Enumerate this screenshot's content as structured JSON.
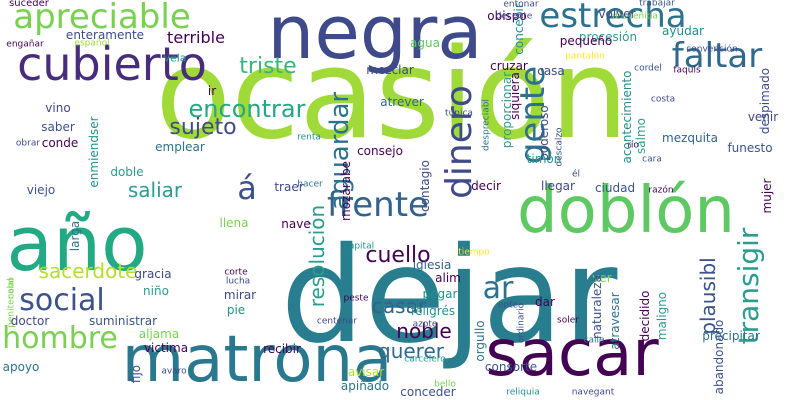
{
  "palette": {
    "dark_purple": "#440154",
    "indigo": "#3b528b",
    "teal": "#21918c",
    "sea_green": "#2a9d8f",
    "green": "#5ec962",
    "lime": "#a0da39",
    "yellow": "#fde725",
    "light_green": "#7ad151"
  },
  "words": [
    {
      "text": "ocasión",
      "color": "#a0da39",
      "v": false
    },
    {
      "text": "dejar",
      "color": "#287d8e",
      "v": false
    },
    {
      "text": "negra",
      "color": "#3e4a89",
      "v": false
    },
    {
      "text": "año",
      "color": "#23a983",
      "v": false
    },
    {
      "text": "doblón",
      "color": "#5ec962",
      "v": false
    },
    {
      "text": "matrona",
      "color": "#2a788e",
      "v": false
    },
    {
      "text": "sacar",
      "color": "#440154",
      "v": false
    },
    {
      "text": "cubierto",
      "color": "#472d7b",
      "v": false
    },
    {
      "text": "apreciable",
      "color": "#7ad151",
      "v": false
    },
    {
      "text": "estrecha",
      "color": "#2c728e",
      "v": false
    },
    {
      "text": "faltar",
      "color": "#31688e",
      "v": false
    },
    {
      "text": "frente",
      "color": "#33638d",
      "v": false
    },
    {
      "text": "social",
      "color": "#3b528b",
      "v": false
    },
    {
      "text": "hombre",
      "color": "#7ad151",
      "v": false
    },
    {
      "text": "transigir",
      "color": "#2a9d8f",
      "v": true
    },
    {
      "text": "dinero",
      "color": "#3e4a89",
      "v": true
    },
    {
      "text": "gente",
      "color": "#2e6f8e",
      "v": true
    },
    {
      "text": "ar",
      "color": "#2c728e",
      "v": false
    },
    {
      "text": "á",
      "color": "#3b528b",
      "v": false
    },
    {
      "text": "encontrar",
      "color": "#22a884",
      "v": false
    },
    {
      "text": "sujeto",
      "color": "#3e4a89",
      "v": false
    },
    {
      "text": "triste",
      "color": "#35b779",
      "v": false
    },
    {
      "text": "saliar",
      "color": "#2a9d8f",
      "v": false
    },
    {
      "text": "aguardar",
      "color": "#2c728e",
      "v": true
    },
    {
      "text": "cuello",
      "color": "#440154",
      "v": false
    },
    {
      "text": "sacerdote",
      "color": "#b5de2b",
      "v": false
    },
    {
      "text": "resolución",
      "color": "#2a9d8f",
      "v": true
    },
    {
      "text": "casar",
      "color": "#33638d",
      "v": false
    },
    {
      "text": "noble",
      "color": "#440154",
      "v": false
    },
    {
      "text": "querer",
      "color": "#31688e",
      "v": false
    },
    {
      "text": "plausibl",
      "color": "#3b528b",
      "v": true
    },
    {
      "text": "terrible",
      "color": "#440154",
      "v": false
    },
    {
      "text": "enteramente",
      "color": "#3e4a89",
      "v": false
    },
    {
      "text": "suceder",
      "color": "#440154",
      "v": false
    },
    {
      "text": "engañar",
      "color": "#440154",
      "v": false
    },
    {
      "text": "español",
      "color": "#a0da39",
      "v": false
    },
    {
      "text": "vela",
      "color": "#21918c",
      "v": false
    },
    {
      "text": "agua",
      "color": "#5ec962",
      "v": false
    },
    {
      "text": "mezclar",
      "color": "#3e4a89",
      "v": false
    },
    {
      "text": "ir",
      "color": "#440154",
      "v": false
    },
    {
      "text": "vino",
      "color": "#3e4a89",
      "v": false
    },
    {
      "text": "saber",
      "color": "#3b528b",
      "v": false
    },
    {
      "text": "conde",
      "color": "#440154",
      "v": false
    },
    {
      "text": "emplear",
      "color": "#2c728e",
      "v": false
    },
    {
      "text": "enmiendser",
      "color": "#21918c",
      "v": true
    },
    {
      "text": "atrever",
      "color": "#33638d",
      "v": false
    },
    {
      "text": "consejo",
      "color": "#440154",
      "v": false
    },
    {
      "text": "renta",
      "color": "#21918c",
      "v": false
    },
    {
      "text": "doble",
      "color": "#2a9d8f",
      "v": false
    },
    {
      "text": "viejo",
      "color": "#3b528b",
      "v": false
    },
    {
      "text": "obrar",
      "color": "#3e4a89",
      "v": false
    },
    {
      "text": "penitencial",
      "color": "#7ad151",
      "v": true
    },
    {
      "text": "larga",
      "color": "#2c728e",
      "v": true
    },
    {
      "text": "llena",
      "color": "#7ad151",
      "v": false
    },
    {
      "text": "traer",
      "color": "#3e4a89",
      "v": false
    },
    {
      "text": "hacer",
      "color": "#2c728e",
      "v": false
    },
    {
      "text": "mozárabe",
      "color": "#440154",
      "v": true
    },
    {
      "text": "nave",
      "color": "#440154",
      "v": false
    },
    {
      "text": "gracia",
      "color": "#3e4a89",
      "v": false
    },
    {
      "text": "niño",
      "color": "#2a9d8f",
      "v": false
    },
    {
      "text": "mirar",
      "color": "#3e4a89",
      "v": false
    },
    {
      "text": "pie",
      "color": "#21918c",
      "v": false
    },
    {
      "text": "corte",
      "color": "#440154",
      "v": false
    },
    {
      "text": "lucha",
      "color": "#3e4a89",
      "v": false
    },
    {
      "text": "doctor",
      "color": "#3e4a89",
      "v": false
    },
    {
      "text": "suministrar",
      "color": "#3b528b",
      "v": false
    },
    {
      "text": "aljama",
      "color": "#7ad151",
      "v": false
    },
    {
      "text": "victima",
      "color": "#440154",
      "v": false
    },
    {
      "text": "recibir",
      "color": "#440154",
      "v": false
    },
    {
      "text": "apoyo",
      "color": "#2c728e",
      "v": false
    },
    {
      "text": "fijo",
      "color": "#3b528b",
      "v": true
    },
    {
      "text": "avaro",
      "color": "#3e4a89",
      "v": false
    },
    {
      "text": "cabo",
      "color": "#7ad151",
      "v": true
    },
    {
      "text": "capital",
      "color": "#21918c",
      "v": false
    },
    {
      "text": "tiempo",
      "color": "#fde725",
      "v": false
    },
    {
      "text": "peste",
      "color": "#440154",
      "v": false
    },
    {
      "text": "centenar",
      "color": "#3e4a89",
      "v": false
    },
    {
      "text": "carcelero",
      "color": "#2a9d8f",
      "v": false
    },
    {
      "text": "bello",
      "color": "#7ad151",
      "v": false
    },
    {
      "text": "avisar",
      "color": "#b5de2b",
      "v": false
    },
    {
      "text": "apiñado",
      "color": "#2c728e",
      "v": false
    },
    {
      "text": "conceder",
      "color": "#3b528b",
      "v": false
    },
    {
      "text": "iglesia",
      "color": "#33638d",
      "v": false
    },
    {
      "text": "alim",
      "color": "#440154",
      "v": false
    },
    {
      "text": "pegar",
      "color": "#21918c",
      "v": false
    },
    {
      "text": "feligrés",
      "color": "#21918c",
      "v": false
    },
    {
      "text": "azote",
      "color": "#3e4a89",
      "v": false
    },
    {
      "text": "ente",
      "color": "#3b528b",
      "v": false
    },
    {
      "text": "orgullo",
      "color": "#2c728e",
      "v": true
    },
    {
      "text": "consorte",
      "color": "#3b528b",
      "v": false
    },
    {
      "text": "reliquia",
      "color": "#21918c",
      "v": false
    },
    {
      "text": "navegant",
      "color": "#3e4a89",
      "v": false
    },
    {
      "text": "ordinario",
      "color": "#3b528b",
      "v": true
    },
    {
      "text": "calle",
      "color": "#2c728e",
      "v": false
    },
    {
      "text": "soler",
      "color": "#440154",
      "v": false
    },
    {
      "text": "dar",
      "color": "#440154",
      "v": false
    },
    {
      "text": "ver",
      "color": "#7ad151",
      "v": false
    },
    {
      "text": "naturaleza",
      "color": "#3b528b",
      "v": true
    },
    {
      "text": "atravesar",
      "color": "#2c728e",
      "v": true
    },
    {
      "text": "decidido",
      "color": "#440154",
      "v": true
    },
    {
      "text": "maligno",
      "color": "#2a9d8f",
      "v": true
    },
    {
      "text": "abandonado",
      "color": "#3b528b",
      "v": true
    },
    {
      "text": "precipitar",
      "color": "#2c728e",
      "v": false
    },
    {
      "text": "contagio",
      "color": "#3e4a89",
      "v": true
    },
    {
      "text": "decir",
      "color": "#440154",
      "v": false
    },
    {
      "text": "llegar",
      "color": "#3e4a89",
      "v": false
    },
    {
      "text": "ciudad",
      "color": "#3b528b",
      "v": false
    },
    {
      "text": "razón",
      "color": "#440154",
      "v": false
    },
    {
      "text": "él",
      "color": "#3e4a89",
      "v": false
    },
    {
      "text": "cara",
      "color": "#3b528b",
      "v": false
    },
    {
      "text": "mujer",
      "color": "#440154",
      "v": true
    },
    {
      "text": "descalzo",
      "color": "#3b528b",
      "v": true
    },
    {
      "text": "timón",
      "color": "#2a9d8f",
      "v": false
    },
    {
      "text": "río",
      "color": "#440154",
      "v": false
    },
    {
      "text": "funesto",
      "color": "#3b528b",
      "v": false
    },
    {
      "text": "venir",
      "color": "#3e4a89",
      "v": false
    },
    {
      "text": "mezquita",
      "color": "#33638d",
      "v": false
    },
    {
      "text": "poderoso",
      "color": "#3e4a89",
      "v": true
    },
    {
      "text": "proporcionar",
      "color": "#2a9d8f",
      "v": true
    },
    {
      "text": "despreciabl",
      "color": "#2c728e",
      "v": true
    },
    {
      "text": "siquiera",
      "color": "#440154",
      "v": true
    },
    {
      "text": "acontecimiento",
      "color": "#21918c",
      "v": true
    },
    {
      "text": "salmo",
      "color": "#2a9d8f",
      "v": true
    },
    {
      "text": "costa",
      "color": "#3e4a89",
      "v": false
    },
    {
      "text": "faquls",
      "color": "#440154",
      "v": false
    },
    {
      "text": "despimado",
      "color": "#3e4a89",
      "v": true
    },
    {
      "text": "cordel",
      "color": "#3b528b",
      "v": false
    },
    {
      "text": "casa",
      "color": "#3e4a89",
      "v": false
    },
    {
      "text": "pantalón",
      "color": "#fde725",
      "v": false
    },
    {
      "text": "cruzar",
      "color": "#440154",
      "v": false
    },
    {
      "text": "túnica",
      "color": "#3e4a89",
      "v": false
    },
    {
      "text": "obispo",
      "color": "#440154",
      "v": false
    },
    {
      "text": "concebir",
      "color": "#21918c",
      "v": true
    },
    {
      "text": "entonar",
      "color": "#3b528b",
      "v": false
    },
    {
      "text": "decente",
      "color": "#3e4a89",
      "v": false
    },
    {
      "text": "desceñida",
      "color": "#7ad151",
      "v": false
    },
    {
      "text": "volver",
      "color": "#3e4a89",
      "v": false
    },
    {
      "text": "trabajar",
      "color": "#3b528b",
      "v": false
    },
    {
      "text": "procesión",
      "color": "#2a9d8f",
      "v": false
    },
    {
      "text": "ayudar",
      "color": "#21918c",
      "v": false
    },
    {
      "text": "convención",
      "color": "#3e4a89",
      "v": false
    },
    {
      "text": "pequeño",
      "color": "#440154",
      "v": false
    },
    {
      "text": "compadre",
      "color": "#440154",
      "v": false
    },
    {
      "text": "amigo",
      "color": "#3e4a89",
      "v": false
    }
  ]
}
